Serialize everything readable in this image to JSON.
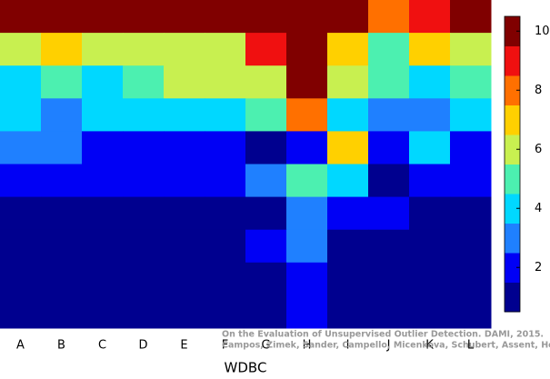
{
  "chart_data": {
    "type": "heatmap",
    "xlabel": "WDBC",
    "categories": [
      "A",
      "B",
      "C",
      "D",
      "E",
      "F",
      "G",
      "H",
      "I",
      "J",
      "K",
      "L"
    ],
    "z": [
      [
        10,
        10,
        10,
        10,
        10,
        10,
        10,
        10,
        10,
        8,
        9,
        10
      ],
      [
        6,
        7,
        6,
        6,
        6,
        6,
        9,
        10,
        7,
        5,
        7,
        6
      ],
      [
        4,
        5,
        4,
        5,
        6,
        6,
        6,
        10,
        6,
        5,
        4,
        5
      ],
      [
        4,
        3,
        4,
        4,
        4,
        4,
        5,
        8,
        4,
        3,
        3,
        4
      ],
      [
        3,
        3,
        2,
        2,
        2,
        2,
        1,
        2,
        7,
        2,
        4,
        2
      ],
      [
        2,
        2,
        2,
        2,
        2,
        2,
        3,
        5,
        4,
        1,
        2,
        2
      ],
      [
        1,
        1,
        1,
        1,
        1,
        1,
        1,
        3,
        2,
        2,
        1,
        1
      ],
      [
        1,
        1,
        1,
        1,
        1,
        1,
        2,
        3,
        1,
        1,
        1,
        1
      ],
      [
        1,
        1,
        1,
        1,
        1,
        1,
        1,
        2,
        1,
        1,
        1,
        1
      ],
      [
        1,
        1,
        1,
        1,
        1,
        1,
        1,
        2,
        1,
        1,
        1,
        1
      ]
    ],
    "colors": [
      "#00008f",
      "#0000f5",
      "#1f80ff",
      "#00d8ff",
      "#4cf0b0",
      "#c8f050",
      "#ffd000",
      "#ff7000",
      "#f01010",
      "#800000"
    ],
    "zlim": [
      0.5,
      10.5
    ],
    "zticks": [
      2,
      4,
      6,
      8,
      10
    ],
    "annotation": [
      "On the Evaluation of Unsupervised Outlier Detection. DAMI, 2015.",
      "Campos, Zimek, Sander, Campello, Micenkova, Schubert, Assent, Houle"
    ]
  }
}
